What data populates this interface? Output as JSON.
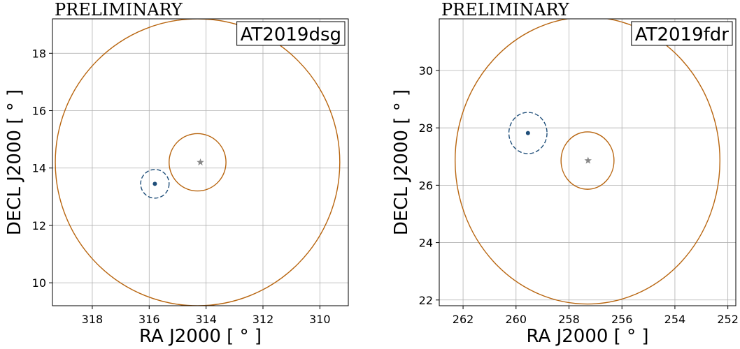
{
  "chart_data": [
    {
      "type": "scatter",
      "watermark": "PRELIMINARY",
      "title": "AT2019dsg",
      "xlabel": "RA J2000 [ $^\\circ$ ]",
      "xlabel_text": "RA J2000 [ ° ]",
      "ylabel_text": "DECL J2000 [ ° ]",
      "xlim": [
        319.4,
        309.0
      ],
      "ylim": [
        9.2,
        19.2
      ],
      "x_ticks": [
        318,
        316,
        314,
        312,
        310
      ],
      "y_ticks": [
        10,
        12,
        14,
        16,
        18
      ],
      "x_tick_labels": [
        "318",
        "316",
        "314",
        "312",
        "310"
      ],
      "y_tick_labels": [
        "10",
        "12",
        "14",
        "16",
        "18"
      ],
      "grid": true,
      "source": {
        "x": 314.2,
        "y": 14.2,
        "marker": "star",
        "color": "#888888"
      },
      "neutrino": {
        "x": 315.8,
        "y": 13.45,
        "marker": "dot",
        "color": "#1f4e79",
        "radius": 0.5,
        "style": "dashed"
      },
      "circles": [
        {
          "x": 314.3,
          "y": 14.2,
          "radius": 1.0,
          "color": "#b8650f"
        },
        {
          "x": 314.3,
          "y": 14.2,
          "radius": 5.0,
          "color": "#b8650f"
        }
      ]
    },
    {
      "type": "scatter",
      "watermark": "PRELIMINARY",
      "title": "AT2019fdr",
      "xlabel_text": "RA J2000 [ ° ]",
      "ylabel_text": "DECL J2000 [ ° ]",
      "xlim": [
        262.9,
        251.7
      ],
      "ylim": [
        21.8,
        31.8
      ],
      "x_ticks": [
        262,
        260,
        258,
        256,
        254,
        252
      ],
      "y_ticks": [
        22,
        24,
        26,
        28,
        30
      ],
      "x_tick_labels": [
        "262",
        "260",
        "258",
        "256",
        "254",
        "252"
      ],
      "y_tick_labels": [
        "22",
        "24",
        "26",
        "28",
        "30"
      ],
      "grid": true,
      "source": {
        "x": 257.28,
        "y": 26.86,
        "marker": "star",
        "color": "#888888"
      },
      "neutrino": {
        "x": 259.55,
        "y": 27.82,
        "marker": "dot",
        "color": "#1f4e79",
        "radius": 0.72,
        "style": "dashed"
      },
      "circles": [
        {
          "x": 257.3,
          "y": 26.86,
          "radius": 1.0,
          "color": "#b8650f"
        },
        {
          "x": 257.3,
          "y": 26.86,
          "radius": 5.0,
          "color": "#b8650f"
        }
      ]
    }
  ]
}
